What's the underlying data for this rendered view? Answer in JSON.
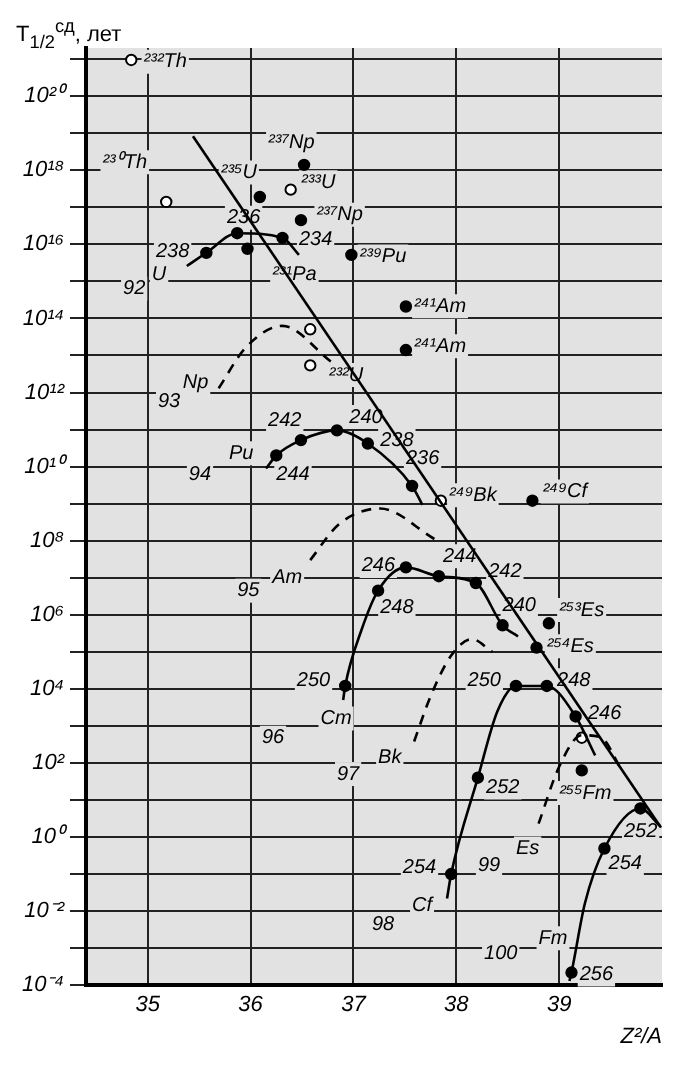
{
  "chart_data": {
    "type": "scatter",
    "xlabel": "Z²/A",
    "ylabel": "T$_{1/2}$$^{сд}$, лет",
    "log": "y",
    "grid": true,
    "legend": false,
    "xlim": [
      34.4,
      40.0
    ],
    "xticks": [
      35,
      36,
      37,
      38,
      39
    ],
    "ylim": [
      0.0001,
      2e+21
    ],
    "yticks": [
      {
        "value": 0.0001,
        "label": "10⁻⁴"
      },
      {
        "value": 0.001,
        "label": null
      },
      {
        "value": 0.01,
        "label": "10⁻²"
      },
      {
        "value": 0.1,
        "label": null
      },
      {
        "value": 1,
        "label": "10⁰"
      },
      {
        "value": 10,
        "label": null
      },
      {
        "value": 100,
        "label": "10²"
      },
      {
        "value": 1000,
        "label": null
      },
      {
        "value": 10000,
        "label": "10⁴"
      },
      {
        "value": 100000,
        "label": null
      },
      {
        "value": 1000000,
        "label": "10⁶"
      },
      {
        "value": 10000000,
        "label": null
      },
      {
        "value": 100000000,
        "label": "10⁸"
      },
      {
        "value": 1000000000,
        "label": null
      },
      {
        "value": 10000000000,
        "label": "10¹⁰"
      },
      {
        "value": 100000000000,
        "label": null
      },
      {
        "value": 1000000000000,
        "label": "10¹²"
      },
      {
        "value": 10000000000000.0,
        "label": null
      },
      {
        "value": 100000000000000.0,
        "label": "10¹⁴"
      },
      {
        "value": 1000000000000000.0,
        "label": null
      },
      {
        "value": 1e+16,
        "label": "10¹⁶"
      },
      {
        "value": 1e+17,
        "label": null
      },
      {
        "value": 1e+18,
        "label": "10¹⁸"
      },
      {
        "value": 1e+19,
        "label": null
      },
      {
        "value": 1e+20,
        "label": "10²⁰"
      },
      {
        "value": 1e+21,
        "label": null
      }
    ],
    "series": [
      {
        "type": "line",
        "color": "#000000",
        "line_style": "solid",
        "x": [
          35.44,
          39.99
        ],
        "values": [
          8.3e+18,
          1.8
        ]
      },
      {
        "type": "line",
        "color": "#000000",
        "line_style": "solid",
        "x": [
          35.38,
          35.57,
          35.87,
          36.31,
          36.47
        ],
        "values": [
          2600000000000000.0,
          5900000000000000.0,
          2e+16,
          1.5e+16,
          5200000000000000.0
        ]
      },
      {
        "type": "line",
        "color": "#000000",
        "line_style": "dashed",
        "x": [
          35.69,
          35.95,
          36.31,
          36.78
        ],
        "values": [
          1300000000000.0,
          16000000000000.0,
          63000000000000.0,
          6900000000000.0
        ]
      },
      {
        "type": "line",
        "color": "#000000",
        "line_style": "solid",
        "x": [
          36.15,
          36.25,
          36.49,
          36.84,
          37.14,
          37.57,
          37.67
        ],
        "values": [
          8900000000.0,
          20000000000.0,
          52000000000.0,
          95000000000.0,
          42000000000.0,
          3000000000.0,
          930000000.0
        ]
      },
      {
        "type": "line",
        "color": "#000000",
        "line_style": "dashed",
        "x": [
          36.58,
          36.86,
          37.26,
          37.79
        ],
        "values": [
          30000000.0,
          280000000.0,
          740000000.0,
          110000000.0
        ]
      },
      {
        "type": "line",
        "color": "#000000",
        "line_style": "solid",
        "x": [
          36.9,
          36.92,
          37.08,
          37.24,
          37.51,
          37.83,
          38.19,
          38.45,
          38.6
        ],
        "values": [
          5000,
          12000,
          400000.0,
          4500000.0,
          19000000.0,
          11000000.0,
          7200000.0,
          520000.0,
          260000.0
        ]
      },
      {
        "type": "line",
        "color": "#000000",
        "line_style": "dashed",
        "x": [
          37.59,
          37.75,
          37.95,
          38.15,
          38.35
        ],
        "values": [
          380,
          6300,
          79000,
          220000.0,
          100000.0
        ]
      },
      {
        "type": "line",
        "color": "#000000",
        "line_style": "solid",
        "x": [
          37.91,
          37.95,
          38.21,
          38.4,
          38.58,
          38.88,
          39.16,
          39.35
        ],
        "values": [
          0.022,
          0.1,
          40,
          2500,
          12000,
          12000,
          1800,
          160
        ]
      },
      {
        "type": "line",
        "color": "#000000",
        "line_style": "dashed",
        "x": [
          38.8,
          39.0,
          39.22,
          39.4,
          39.61
        ],
        "values": [
          2.3,
          79,
          560,
          500,
          63
        ]
      },
      {
        "type": "line",
        "color": "#000000",
        "line_style": "solid",
        "x": [
          39.1,
          39.12,
          39.25,
          39.44,
          39.79,
          39.98
        ],
        "values": [
          0.00013,
          0.00022,
          0.016,
          0.49,
          5.9,
          2
        ]
      },
      {
        "color": "#000000",
        "marker": "circle",
        "x": [
          36.09,
          36.52,
          35.57,
          35.87,
          36.31,
          35.97,
          36.98,
          37.51,
          37.51,
          36.49,
          36.49,
          36.25,
          36.84,
          37.14,
          37.57,
          38.74,
          37.51,
          37.83,
          38.19,
          37.24,
          38.45,
          38.9,
          38.78,
          36.92,
          38.58,
          38.88,
          39.16,
          39.22,
          38.21,
          39.79,
          39.44,
          37.95,
          39.12
        ],
        "values": [
          1.9e+17,
          1.4e+18,
          5900000000000000.0,
          2e+16,
          1.5e+16,
          7600000000000000.0,
          5200000000000000.0,
          210000000000000.0,
          14000000000000.0,
          4.5e+16,
          52000000000.0,
          20000000000.0,
          95000000000.0,
          42000000000.0,
          3000000000.0,
          1200000000.0,
          19000000.0,
          11000000.0,
          7200000.0,
          4500000.0,
          520000.0,
          590000.0,
          130000.0,
          12000,
          12000,
          12000,
          1800,
          63,
          40,
          5.9,
          0.49,
          0.1,
          0.00022
        ]
      },
      {
        "color": "#ffffff",
        "marker": "circle",
        "x": [
          34.84,
          35.18,
          36.39,
          36.58,
          36.58,
          37.85,
          39.22
        ],
        "values": [
          9.5e+20,
          1.4e+17,
          3e+17,
          51000000000000.0,
          5400000000000.0,
          1200000000.0,
          480
        ]
      }
    ],
    "annotations": [
      "²³²Th",
      "²³⁰Th",
      "²³⁵U",
      "²³⁷Np",
      "²³³U",
      "²³⁷Np",
      "236",
      "238",
      "U",
      "92",
      "234",
      "²³¹Pa",
      "²³⁹Pu",
      "²⁴¹Am",
      "²⁴¹Am",
      "²³²U",
      "Np",
      "93",
      "242",
      "240",
      "238",
      "Pu",
      "94",
      "244",
      "236",
      "²⁴⁹Bk",
      "²⁴⁹Cf",
      "Am",
      "95",
      "244",
      "246",
      "242",
      "248",
      "240",
      "²⁵³Es",
      "²⁵⁴Es",
      "250",
      "250",
      "248",
      "246",
      "Cm",
      "96",
      "Bk",
      "97",
      "252",
      "²⁵⁵Fm",
      "252",
      "Es",
      "99",
      "254",
      "254",
      "Cf",
      "98",
      "Fm",
      "100",
      "256"
    ]
  }
}
